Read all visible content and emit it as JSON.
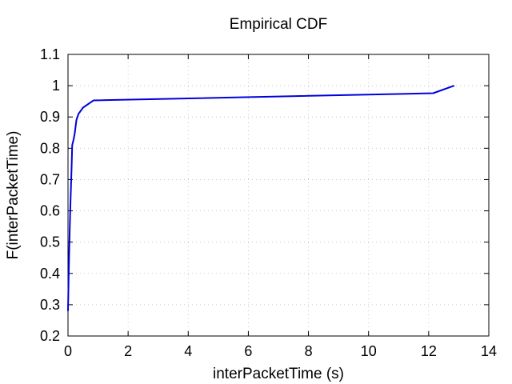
{
  "chart_data": {
    "type": "line",
    "title": "Empirical CDF",
    "xlabel": "interPacketTime (s)",
    "ylabel": "F(interPacketTime)",
    "xlim": [
      0,
      14
    ],
    "ylim": [
      0.2,
      1.1
    ],
    "xticks": [
      0,
      2,
      4,
      6,
      8,
      10,
      12,
      14
    ],
    "yticks": [
      0.2,
      0.3,
      0.4,
      0.5,
      0.6,
      0.7,
      0.8,
      0.9,
      1,
      1.1
    ],
    "xtick_labels": [
      "0",
      "2",
      "4",
      "6",
      "8",
      "10",
      "12",
      "14"
    ],
    "ytick_labels": [
      "0.2",
      "0.3",
      "0.4",
      "0.5",
      "0.6",
      "0.7",
      "0.8",
      "0.9",
      "1",
      "1.1"
    ],
    "grid": true,
    "legend": "none",
    "series": [
      {
        "color": "#0000dd",
        "x": [
          0.0,
          0.02,
          0.04,
          0.06,
          0.08,
          0.1,
          0.12,
          0.14,
          0.18,
          0.22,
          0.28,
          0.35,
          0.5,
          0.85,
          12.15,
          12.85
        ],
        "y": [
          0.28,
          0.38,
          0.47,
          0.55,
          0.62,
          0.68,
          0.74,
          0.81,
          0.825,
          0.845,
          0.89,
          0.91,
          0.93,
          0.953,
          0.976,
          1.0
        ]
      }
    ]
  }
}
